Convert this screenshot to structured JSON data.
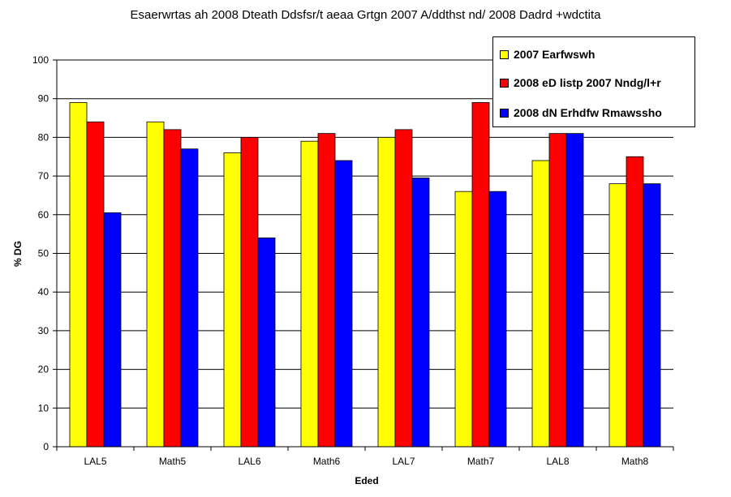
{
  "chart_data": {
    "type": "bar",
    "title": "Esaerwrtas ah 2008 Dteath Ddsfsr/t aeaa Grtgn 2007 A/ddthst nd/ 2008 Dadrd +wdctita",
    "xlabel": "Eded",
    "ylabel": "% DG",
    "ylim": [
      0,
      100
    ],
    "yticks": [
      0,
      10,
      20,
      30,
      40,
      50,
      60,
      70,
      80,
      90,
      100
    ],
    "grid": true,
    "legend_position": "top-right",
    "categories": [
      "LAL5",
      "Math5",
      "LAL6",
      "Math6",
      "LAL7",
      "Math7",
      "LAL8",
      "Math8"
    ],
    "series": [
      {
        "name": "2007 Earfwswh",
        "color": "#FFFF00",
        "values": [
          89,
          84,
          76,
          79,
          80,
          66,
          74,
          68
        ]
      },
      {
        "name": "2008 eD listp 2007 Nndg/l+r",
        "color": "#FF0000",
        "values": [
          84,
          82,
          80,
          81,
          82,
          89,
          81,
          75
        ]
      },
      {
        "name": "2008 dN Erhdfw Rmawssho",
        "color": "#0000FF",
        "values": [
          60.5,
          77,
          54,
          74,
          69.5,
          66,
          81,
          68
        ]
      }
    ]
  }
}
